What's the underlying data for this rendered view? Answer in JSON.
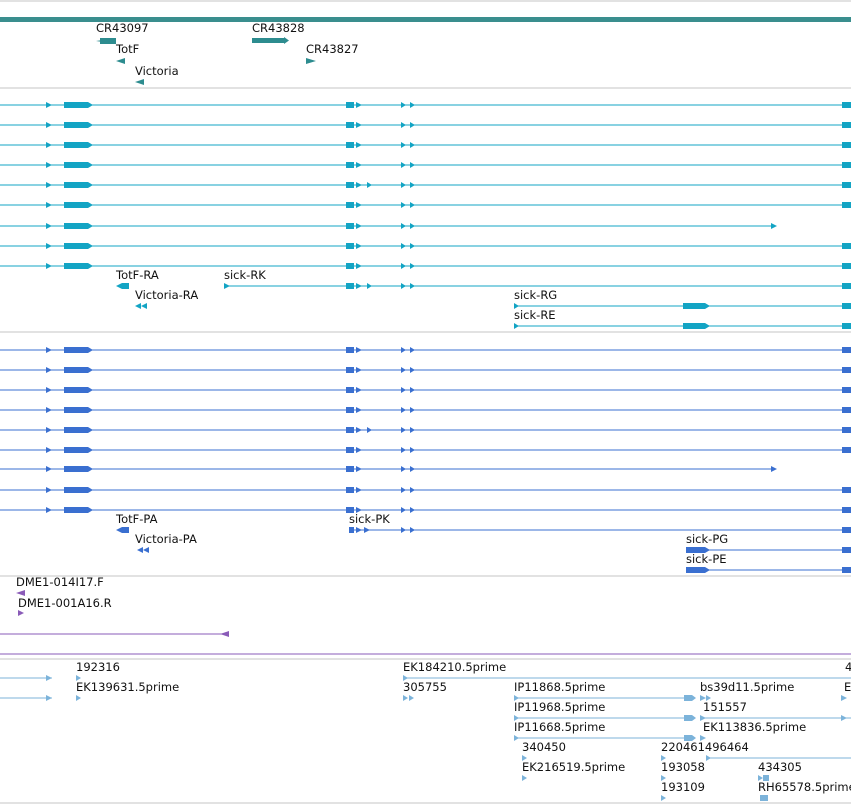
{
  "colors": {
    "scaffold": "#3a8e8e",
    "noncoding": "#2d8c8f",
    "mrna": "#13a4c4",
    "protein": "#3a6fd0",
    "clone": "#8a5bb8",
    "est": "#7cb3da",
    "divider": "#c4c4c4"
  },
  "labels": {
    "cr43097": "CR43097",
    "cr43828": "CR43828",
    "totf": "TotF",
    "cr43827": "CR43827",
    "victoria": "Victoria",
    "totf_ra": "TotF-RA",
    "sick_rk": "sick-RK",
    "victoria_ra": "Victoria-RA",
    "sick_rg": "sick-RG",
    "sick_re": "sick-RE",
    "totf_pa": "TotF-PA",
    "sick_pk": "sick-PK",
    "victoria_pa": "Victoria-PA",
    "sick_pg": "sick-PG",
    "sick_pe": "sick-PE",
    "dme_f": "DME1-014I17.F",
    "dme_r": "DME1-001A16.R",
    "e192316": "192316",
    "e_ek184210": "EK184210.5prime",
    "e_4": "4",
    "e_ek139631": "EK139631.5prime",
    "e_305755": "305755",
    "e_ip11868": "IP11868.5prime",
    "e_bs39d11": "bs39d11.5prime",
    "e_E": "E",
    "e_ip11968": "IP11968.5prime",
    "e_151557": "151557",
    "e_ip11668": "IP11668.5prime",
    "e_ek113836": "EK113836.5prime",
    "e_340450": "340450",
    "e_220461": "220461496464",
    "e_ek216519": "EK216519.5prime",
    "e_193058": "193058",
    "e_434305": "434305",
    "e_193109": "193109",
    "e_rh65578": "RH65578.5prime"
  }
}
